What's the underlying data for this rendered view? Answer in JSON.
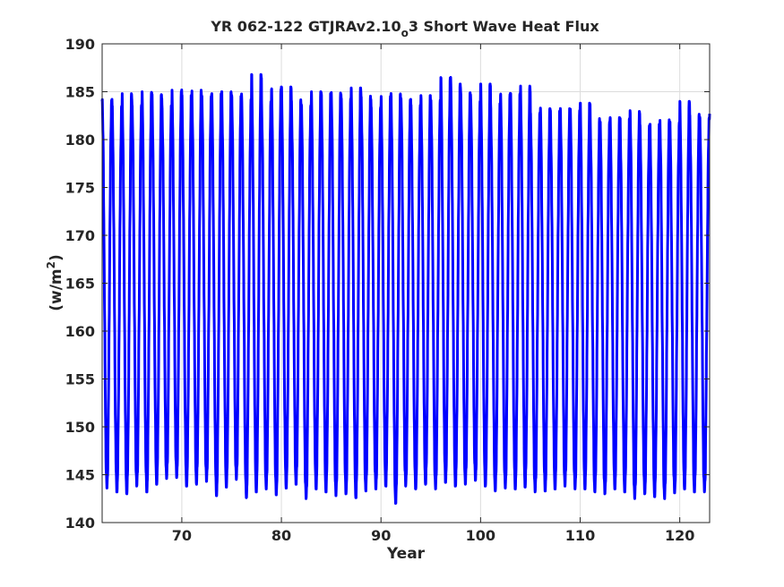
{
  "chart_data": {
    "type": "line",
    "title": "YR 062-122 GTJRAv2.10",
    "title_subscript": "o",
    "title_suffix": "3 Short Wave Heat Flux",
    "xlabel": "Year",
    "ylabel": "(w/m",
    "ylabel_superscript": "2",
    "ylabel_close": ")",
    "xlim": [
      62,
      123
    ],
    "ylim": [
      140,
      190
    ],
    "xticks": [
      70,
      80,
      90,
      100,
      110,
      120
    ],
    "yticks": [
      140,
      145,
      150,
      155,
      160,
      165,
      170,
      175,
      180,
      185,
      190
    ],
    "grid": true,
    "line_color": "#0000ff",
    "annual_maxima": [
      184.5,
      183.5,
      184.8,
      184.0,
      185.0,
      184.7,
      183.8,
      185.3,
      184.6,
      185.2,
      184.9,
      184.8,
      185.0,
      185.0,
      184.3,
      186.8,
      184.2,
      185.5,
      185.5,
      184.2,
      184.0,
      185.0,
      184.8,
      185.3,
      184.3,
      185.4,
      184.8,
      183.6,
      184.5,
      184.9,
      184.6,
      183.6,
      184.6,
      184.5,
      186.5,
      185.8,
      185.2,
      184.3,
      185.8,
      183.8,
      185.1,
      184.8,
      185.6,
      183.2,
      183.3,
      183.0,
      183.5,
      183.3,
      183.8,
      182.2,
      182.2,
      182.3,
      182.2,
      183.4,
      181.5,
      181.6,
      182.3,
      182.0,
      184.0,
      182.7
    ],
    "annual_minima": [
      143.6,
      143.2,
      143.0,
      143.8,
      143.2,
      144.0,
      144.6,
      144.7,
      143.8,
      144.0,
      144.3,
      142.8,
      143.7,
      144.5,
      142.6,
      143.2,
      143.5,
      142.9,
      143.6,
      144.0,
      142.5,
      143.5,
      143.2,
      142.8,
      143.0,
      142.6,
      143.3,
      143.5,
      143.8,
      142.0,
      143.8,
      143.5,
      144.0,
      143.5,
      144.2,
      143.8,
      144.0,
      144.4,
      143.8,
      143.3,
      143.6,
      143.5,
      143.7,
      143.2,
      143.3,
      143.5,
      143.8,
      143.5,
      143.5,
      143.2,
      143.0,
      143.5,
      143.2,
      142.5,
      143.0,
      142.7,
      142.5,
      143.1,
      143.5,
      143.2
    ]
  }
}
